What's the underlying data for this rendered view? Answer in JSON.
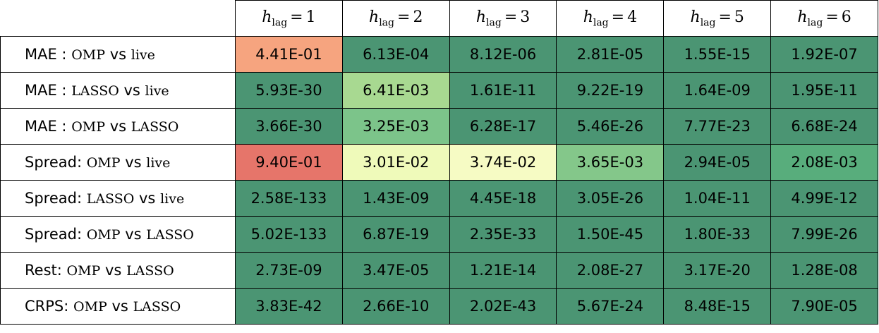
{
  "table": {
    "headers": [
      {
        "base": "h",
        "sub": "lag",
        "rel": "=",
        "value": "1"
      },
      {
        "base": "h",
        "sub": "lag",
        "rel": "=",
        "value": "2"
      },
      {
        "base": "h",
        "sub": "lag",
        "rel": "=",
        "value": "3"
      },
      {
        "base": "h",
        "sub": "lag",
        "rel": "=",
        "value": "4"
      },
      {
        "base": "h",
        "sub": "lag",
        "rel": "=",
        "value": "5"
      },
      {
        "base": "h",
        "sub": "lag",
        "rel": "=",
        "value": "6"
      }
    ],
    "rows": [
      {
        "label": [
          "MAE : ",
          "OMP",
          " vs ",
          "live"
        ],
        "cells": [
          "4.41E-01",
          "6.13E-04",
          "8.12E-06",
          "2.81E-05",
          "1.55E-15",
          "1.92E-07"
        ],
        "colors": [
          "#f6a47f",
          "#4b9573",
          "#4b9573",
          "#4b9573",
          "#4b9573",
          "#4b9573"
        ]
      },
      {
        "label": [
          "MAE : ",
          "LASSO",
          " vs ",
          "live"
        ],
        "cells": [
          "5.93E-30",
          "6.41E-03",
          "1.61E-11",
          "9.22E-19",
          "1.64E-09",
          "1.95E-11"
        ],
        "colors": [
          "#4b9573",
          "#a8d991",
          "#4b9573",
          "#4b9573",
          "#4b9573",
          "#4b9573"
        ]
      },
      {
        "label": [
          "MAE : ",
          "OMP",
          " vs ",
          "LASSO"
        ],
        "cells": [
          "3.66E-30",
          "3.25E-03",
          "6.28E-17",
          "5.46E-26",
          "7.77E-23",
          "6.68E-24"
        ],
        "colors": [
          "#4b9573",
          "#7cc48a",
          "#4b9573",
          "#4b9573",
          "#4b9573",
          "#4b9573"
        ]
      },
      {
        "label": [
          "Spread: ",
          "OMP",
          " vs ",
          "live"
        ],
        "cells": [
          "9.40E-01",
          "3.01E-02",
          "3.74E-02",
          "3.65E-03",
          "2.94E-05",
          "2.08E-03"
        ],
        "colors": [
          "#e6756a",
          "#effaba",
          "#f6fbc4",
          "#84c78a",
          "#4b9573",
          "#58ad7c"
        ]
      },
      {
        "label": [
          "Spread: ",
          "LASSO",
          " vs ",
          "live"
        ],
        "cells": [
          "2.58E-133",
          "1.43E-09",
          "4.45E-18",
          "3.05E-26",
          "1.04E-11",
          "4.99E-12"
        ],
        "colors": [
          "#4b9573",
          "#4b9573",
          "#4b9573",
          "#4b9573",
          "#4b9573",
          "#4b9573"
        ]
      },
      {
        "label": [
          "Spread: ",
          "OMP",
          " vs ",
          "LASSO"
        ],
        "cells": [
          "5.02E-133",
          "6.87E-19",
          "2.35E-33",
          "1.50E-45",
          "1.80E-33",
          "7.99E-26"
        ],
        "colors": [
          "#4b9573",
          "#4b9573",
          "#4b9573",
          "#4b9573",
          "#4b9573",
          "#4b9573"
        ]
      },
      {
        "label": [
          "Rest: ",
          "OMP",
          " vs ",
          "LASSO"
        ],
        "cells": [
          "2.73E-09",
          "3.47E-05",
          "1.21E-14",
          "2.08E-27",
          "3.17E-20",
          "1.28E-08"
        ],
        "colors": [
          "#4b9573",
          "#4b9573",
          "#4b9573",
          "#4b9573",
          "#4b9573",
          "#4b9573"
        ]
      },
      {
        "label": [
          "CRPS: ",
          "OMP",
          " vs ",
          "LASSO"
        ],
        "cells": [
          "3.83E-42",
          "2.66E-10",
          "2.02E-43",
          "5.67E-24",
          "8.48E-15",
          "7.90E-05"
        ],
        "colors": [
          "#4b9573",
          "#4b9573",
          "#4b9573",
          "#4b9573",
          "#4b9573",
          "#4b9573"
        ]
      }
    ]
  }
}
